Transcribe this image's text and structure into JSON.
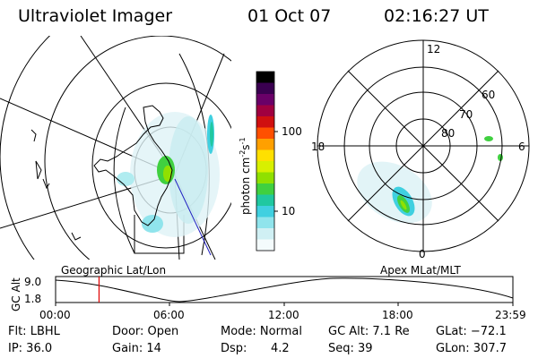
{
  "header": {
    "title": "Ultraviolet Imager",
    "date": "01 Oct 07",
    "time": "02:16:27 UT"
  },
  "colorbar": {
    "label": "photon cm",
    "label_exp": "-2",
    "label_s": "s",
    "label_s_exp": "-1",
    "tick_100": "100",
    "tick_10": "10",
    "colors": [
      "#000000",
      "#3a0050",
      "#6a0068",
      "#a00040",
      "#d01010",
      "#ff5000",
      "#ffa000",
      "#ffe000",
      "#d8f000",
      "#90e000",
      "#40d040",
      "#20c8a0",
      "#40d0e0",
      "#90e4ec",
      "#d0f0f4",
      "#f4fbfc"
    ]
  },
  "left_map": {
    "label": "Geographic Lat/Lon"
  },
  "right_map": {
    "label": "Apex MLat/MLT",
    "mlt_labels": {
      "top": "12",
      "left": "18",
      "right": "6",
      "bottom": "0"
    },
    "lat_labels": [
      "60",
      "70",
      "80"
    ]
  },
  "orbit": {
    "ylabel": "GC Alt",
    "ymax": "9.0",
    "ymin": "1.8",
    "xticks": [
      "00:00",
      "06:00",
      "12:00",
      "18:00",
      "23:59"
    ],
    "current_time_fraction": 0.095
  },
  "status": {
    "row1": {
      "flt": "Flt: LBHL",
      "door": "Door: Open",
      "mode": "Mode: Normal",
      "gcalt": "GC Alt: 7.1 Re",
      "glat": "GLat: −72.1"
    },
    "row2": {
      "ip": "IP: 36.0",
      "gain": "Gain: 14",
      "dsp_label": "Dsp:",
      "dsp_value": "4.2",
      "seq": "Seq: 39",
      "glon": "GLon: 307.7"
    }
  }
}
